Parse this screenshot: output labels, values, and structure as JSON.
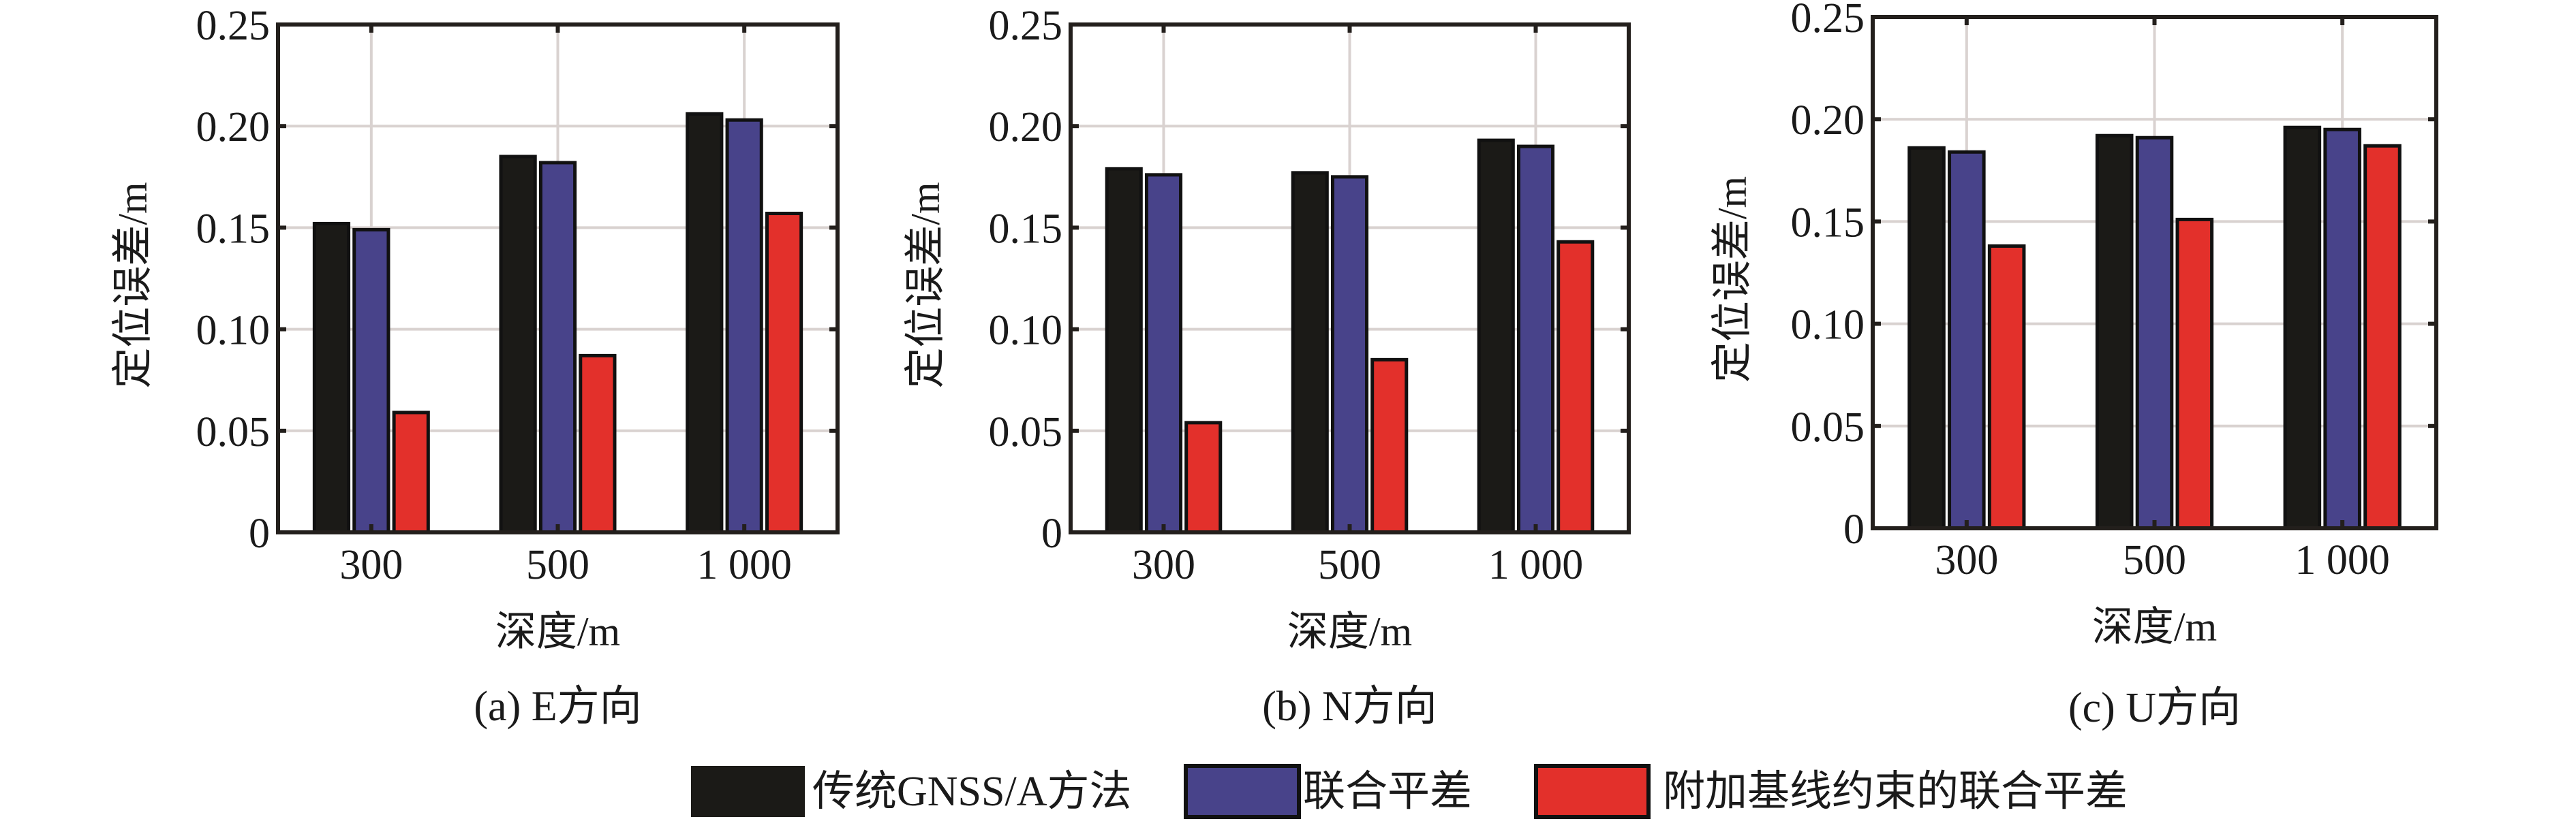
{
  "legend": {
    "items": [
      {
        "label": "传统GNSS/A方法",
        "color": "#1b1a17"
      },
      {
        "label": "联合平差",
        "color": "#48438a"
      },
      {
        "label": "附加基线约束的联合平差",
        "color": "#e3302b"
      }
    ]
  },
  "chart_data": [
    {
      "type": "bar",
      "title": "(a) E方向",
      "xlabel": "深度/m",
      "ylabel": "定位误差/m",
      "categories": [
        "300",
        "500",
        "1 000"
      ],
      "ylim": [
        0,
        0.25
      ],
      "yticks": [
        "0",
        "0.05",
        "0.10",
        "0.15",
        "0.20",
        "0.25"
      ],
      "grid": true,
      "series": [
        {
          "name": "传统GNSS/A方法",
          "values": [
            0.152,
            0.185,
            0.206
          ]
        },
        {
          "name": "联合平差",
          "values": [
            0.149,
            0.182,
            0.203
          ]
        },
        {
          "name": "附加基线约束的联合平差",
          "values": [
            0.059,
            0.087,
            0.157
          ]
        }
      ]
    },
    {
      "type": "bar",
      "title": "(b) N方向",
      "xlabel": "深度/m",
      "ylabel": "定位误差/m",
      "categories": [
        "300",
        "500",
        "1 000"
      ],
      "ylim": [
        0,
        0.25
      ],
      "yticks": [
        "0",
        "0.05",
        "0.10",
        "0.15",
        "0.20",
        "0.25"
      ],
      "grid": true,
      "series": [
        {
          "name": "传统GNSS/A方法",
          "values": [
            0.179,
            0.177,
            0.193
          ]
        },
        {
          "name": "联合平差",
          "values": [
            0.176,
            0.175,
            0.19
          ]
        },
        {
          "name": "附加基线约束的联合平差",
          "values": [
            0.054,
            0.085,
            0.143
          ]
        }
      ]
    },
    {
      "type": "bar",
      "title": "(c) U方向",
      "xlabel": "深度/m",
      "ylabel": "定位误差/m",
      "categories": [
        "300",
        "500",
        "1 000"
      ],
      "ylim": [
        0,
        0.25
      ],
      "yticks": [
        "0",
        "0.05",
        "0.10",
        "0.15",
        "0.20",
        "0.25"
      ],
      "grid": true,
      "series": [
        {
          "name": "传统GNSS/A方法",
          "values": [
            0.186,
            0.192,
            0.196
          ]
        },
        {
          "name": "联合平差",
          "values": [
            0.184,
            0.191,
            0.195
          ]
        },
        {
          "name": "附加基线约束的联合平差",
          "values": [
            0.138,
            0.151,
            0.187
          ]
        }
      ]
    }
  ]
}
